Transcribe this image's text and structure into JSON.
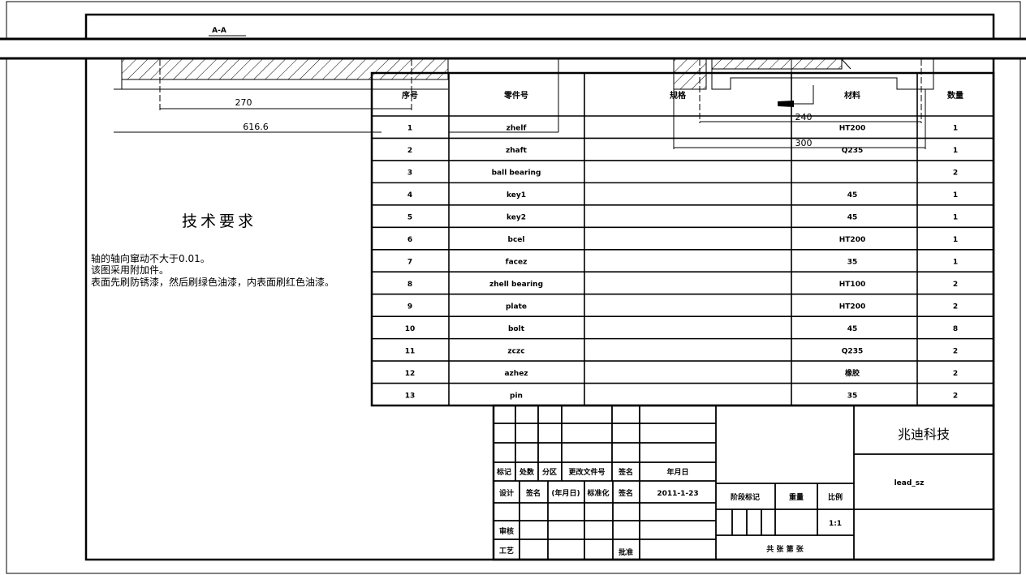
{
  "section_label": "A-A",
  "dimensions": {
    "d270": "270",
    "d616": "616.6",
    "d240": "240",
    "d300": "300"
  },
  "tech_requirements": {
    "title": "技术要求",
    "lines": [
      "轴的轴向窜动不大于0.01。",
      "该图采用附加件。",
      "表面先刷防锈漆，然后刷绿色油漆，内表面刷红色油漆。"
    ]
  },
  "bom": {
    "headers": [
      "序号",
      "零件号",
      "规格",
      "材料",
      "数量"
    ],
    "rows": [
      {
        "no": "1",
        "name": "zhelf",
        "material": "HT200",
        "qty": "1"
      },
      {
        "no": "2",
        "name": "zhaft",
        "material": "Q235",
        "qty": "1"
      },
      {
        "no": "3",
        "name": "ball bearing",
        "material": "",
        "qty": "2"
      },
      {
        "no": "4",
        "name": "key1",
        "material": "45",
        "qty": "1"
      },
      {
        "no": "5",
        "name": "key2",
        "material": "45",
        "qty": "1"
      },
      {
        "no": "6",
        "name": "bcel",
        "material": "HT200",
        "qty": "1"
      },
      {
        "no": "7",
        "name": "facez",
        "material": "35",
        "qty": "1"
      },
      {
        "no": "8",
        "name": "zhell bearing",
        "material": "HT100",
        "qty": "2"
      },
      {
        "no": "9",
        "name": "plate",
        "material": "HT200",
        "qty": "2"
      },
      {
        "no": "10",
        "name": "bolt",
        "material": "45",
        "qty": "8"
      },
      {
        "no": "11",
        "name": "zczc",
        "material": "Q235",
        "qty": "2"
      },
      {
        "no": "12",
        "name": "azhez",
        "material": "橡胶",
        "qty": "2"
      },
      {
        "no": "13",
        "name": "pin",
        "material": "35",
        "qty": "2"
      }
    ]
  },
  "title_block": {
    "company": "兆迪科技",
    "part_name": "lead_sz",
    "header_row": [
      "标记",
      "处数",
      "分区",
      "更改文件号",
      "签名",
      "年月日"
    ],
    "design_row": [
      "设计",
      "签名",
      "(年月日)",
      "标准化",
      "签名",
      "2011-1-23"
    ],
    "review": "审核",
    "process": "工艺",
    "approve": "批准",
    "stage_mark": "阶段标记",
    "weight": "重量",
    "scale_label": "比例",
    "scale": "1:1",
    "sheets": "共  张  第  张"
  }
}
